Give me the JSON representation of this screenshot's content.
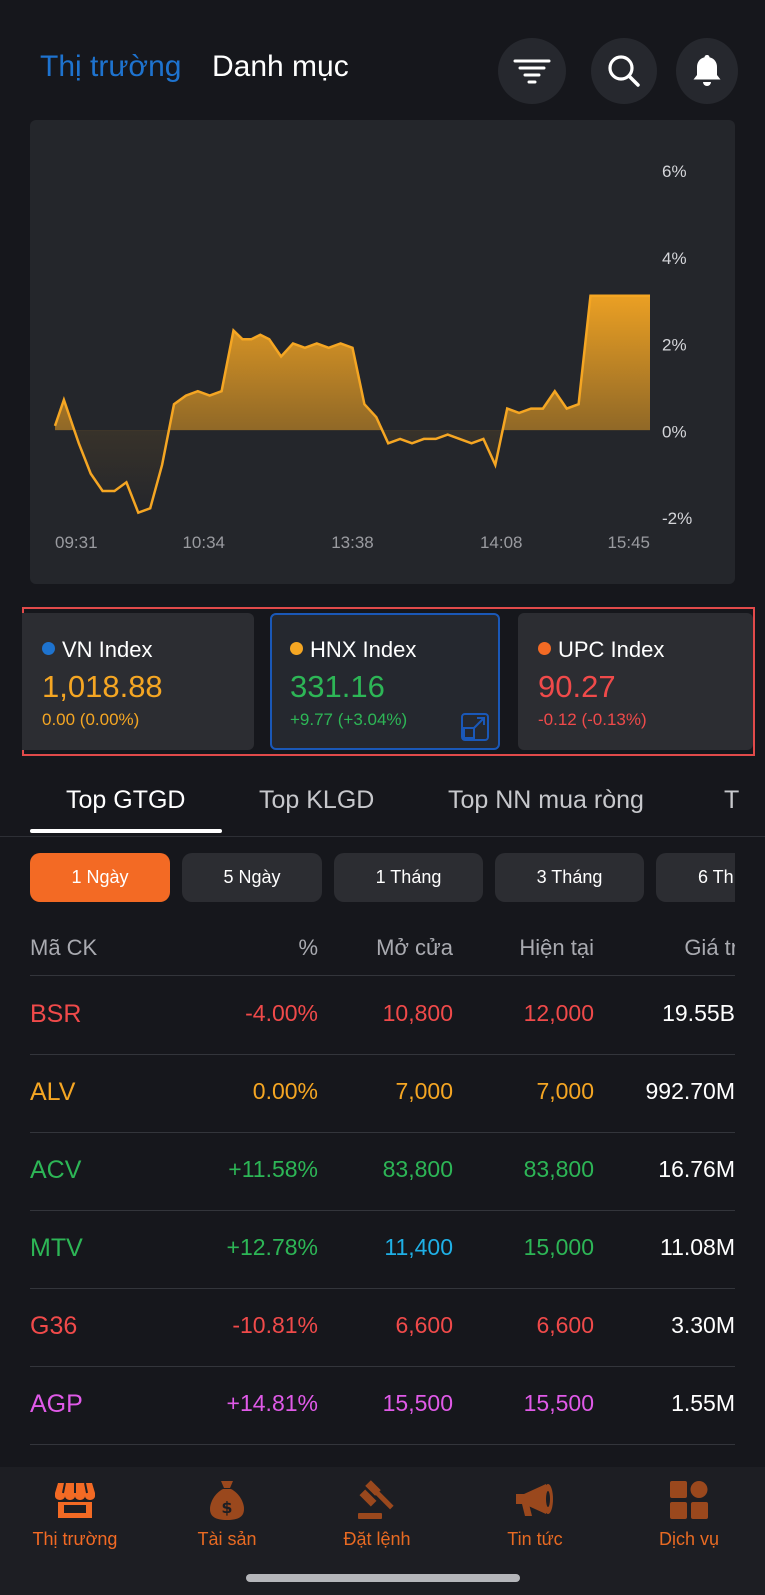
{
  "header": {
    "tabs": [
      {
        "label": "Thị trường",
        "active": true
      },
      {
        "label": "Danh mục",
        "active": false
      }
    ],
    "buttons": [
      "filter-icon",
      "search-icon",
      "bell-icon"
    ]
  },
  "chart_data": {
    "type": "area",
    "x_tick_labels": [
      "09:31",
      "10:34",
      "13:38",
      "14:08",
      "15:45"
    ],
    "y_tick_labels": [
      "6%",
      "4%",
      "2%",
      "0%",
      "-2%"
    ],
    "ylim": [
      -2,
      6
    ],
    "baseline": 0,
    "color": "#f5a623",
    "x": [
      0,
      3,
      6,
      8,
      12,
      16,
      20,
      24,
      28,
      32,
      36,
      40,
      44,
      48,
      52,
      56,
      60,
      63,
      66,
      69,
      72,
      76,
      80,
      84,
      88,
      92,
      96,
      100,
      104,
      108,
      112,
      116,
      120,
      124,
      128,
      132,
      136,
      140,
      144,
      148,
      152,
      156,
      160,
      164,
      168,
      172,
      176,
      180,
      184,
      188,
      192,
      196,
      200
    ],
    "values": [
      0.1,
      0.7,
      0.1,
      -0.3,
      -1.0,
      -1.4,
      -1.4,
      -1.2,
      -1.9,
      -1.8,
      -0.8,
      0.6,
      0.8,
      0.9,
      0.8,
      0.9,
      2.3,
      2.1,
      2.1,
      2.2,
      2.1,
      1.7,
      2.0,
      1.9,
      2.0,
      1.9,
      2.0,
      1.9,
      0.6,
      0.3,
      -0.3,
      -0.2,
      -0.3,
      -0.2,
      -0.2,
      -0.1,
      -0.2,
      -0.3,
      -0.2,
      -0.8,
      0.5,
      0.4,
      0.5,
      0.5,
      0.9,
      0.5,
      0.6,
      3.1,
      3.1,
      3.1,
      3.1,
      3.1,
      3.1
    ]
  },
  "indices": [
    {
      "name": "VN Index",
      "dot_color": "#1e73cf",
      "value": "1,018.88",
      "change": "0.00 (0.00%)",
      "color": "#f5a623",
      "selected": false
    },
    {
      "name": "HNX Index",
      "dot_color": "#f5a623",
      "value": "331.16",
      "change": "+9.77 (+3.04%)",
      "color": "#2db656",
      "selected": true
    },
    {
      "name": "UPC Index",
      "dot_color": "#f36a24",
      "value": "90.27",
      "change": "-0.12 (-0.13%)",
      "color": "#f04a4a",
      "selected": false
    }
  ],
  "ranking_tabs": [
    "Top GTGD",
    "Top KLGD",
    "Top NN mua ròng",
    "T"
  ],
  "periods": [
    "1 Ngày",
    "5 Ngày",
    "1 Tháng",
    "3 Tháng",
    "6 Th"
  ],
  "table": {
    "headers": [
      "Mã CK",
      "%",
      "Mở cửa",
      "Hiện tại",
      "Giá trị"
    ],
    "rows": [
      {
        "code": "BSR",
        "pct": "-4.00%",
        "open": "10,800",
        "current": "12,000",
        "value": "19.55B",
        "code_color": "#f04a4a",
        "pct_color": "#f04a4a",
        "open_color": "#f04a4a",
        "cur_color": "#f04a4a"
      },
      {
        "code": "ALV",
        "pct": "0.00%",
        "open": "7,000",
        "current": "7,000",
        "value": "992.70M",
        "code_color": "#f5a623",
        "pct_color": "#f5a623",
        "open_color": "#f5a623",
        "cur_color": "#f5a623"
      },
      {
        "code": "ACV",
        "pct": "+11.58%",
        "open": "83,800",
        "current": "83,800",
        "value": "16.76M",
        "code_color": "#2db656",
        "pct_color": "#2db656",
        "open_color": "#2db656",
        "cur_color": "#2db656"
      },
      {
        "code": "MTV",
        "pct": "+12.78%",
        "open": "11,400",
        "current": "15,000",
        "value": "11.08M",
        "code_color": "#2db656",
        "pct_color": "#2db656",
        "open_color": "#1fb0e6",
        "cur_color": "#2db656"
      },
      {
        "code": "G36",
        "pct": "-10.81%",
        "open": "6,600",
        "current": "6,600",
        "value": "3.30M",
        "code_color": "#f04a4a",
        "pct_color": "#f04a4a",
        "open_color": "#f04a4a",
        "cur_color": "#f04a4a"
      },
      {
        "code": "AGP",
        "pct": "+14.81%",
        "open": "15,500",
        "current": "15,500",
        "value": "1.55M",
        "code_color": "#e05ae8",
        "pct_color": "#e05ae8",
        "open_color": "#e05ae8",
        "cur_color": "#e05ae8"
      }
    ]
  },
  "bottom_nav": [
    {
      "label": "Thị trường",
      "icon": "store-icon",
      "active": true
    },
    {
      "label": "Tài sản",
      "icon": "money-bag-icon",
      "active": false
    },
    {
      "label": "Đặt lệnh",
      "icon": "gavel-icon",
      "active": false
    },
    {
      "label": "Tin tức",
      "icon": "megaphone-icon",
      "active": false
    },
    {
      "label": "Dịch vụ",
      "icon": "grid-icon",
      "active": false
    }
  ]
}
